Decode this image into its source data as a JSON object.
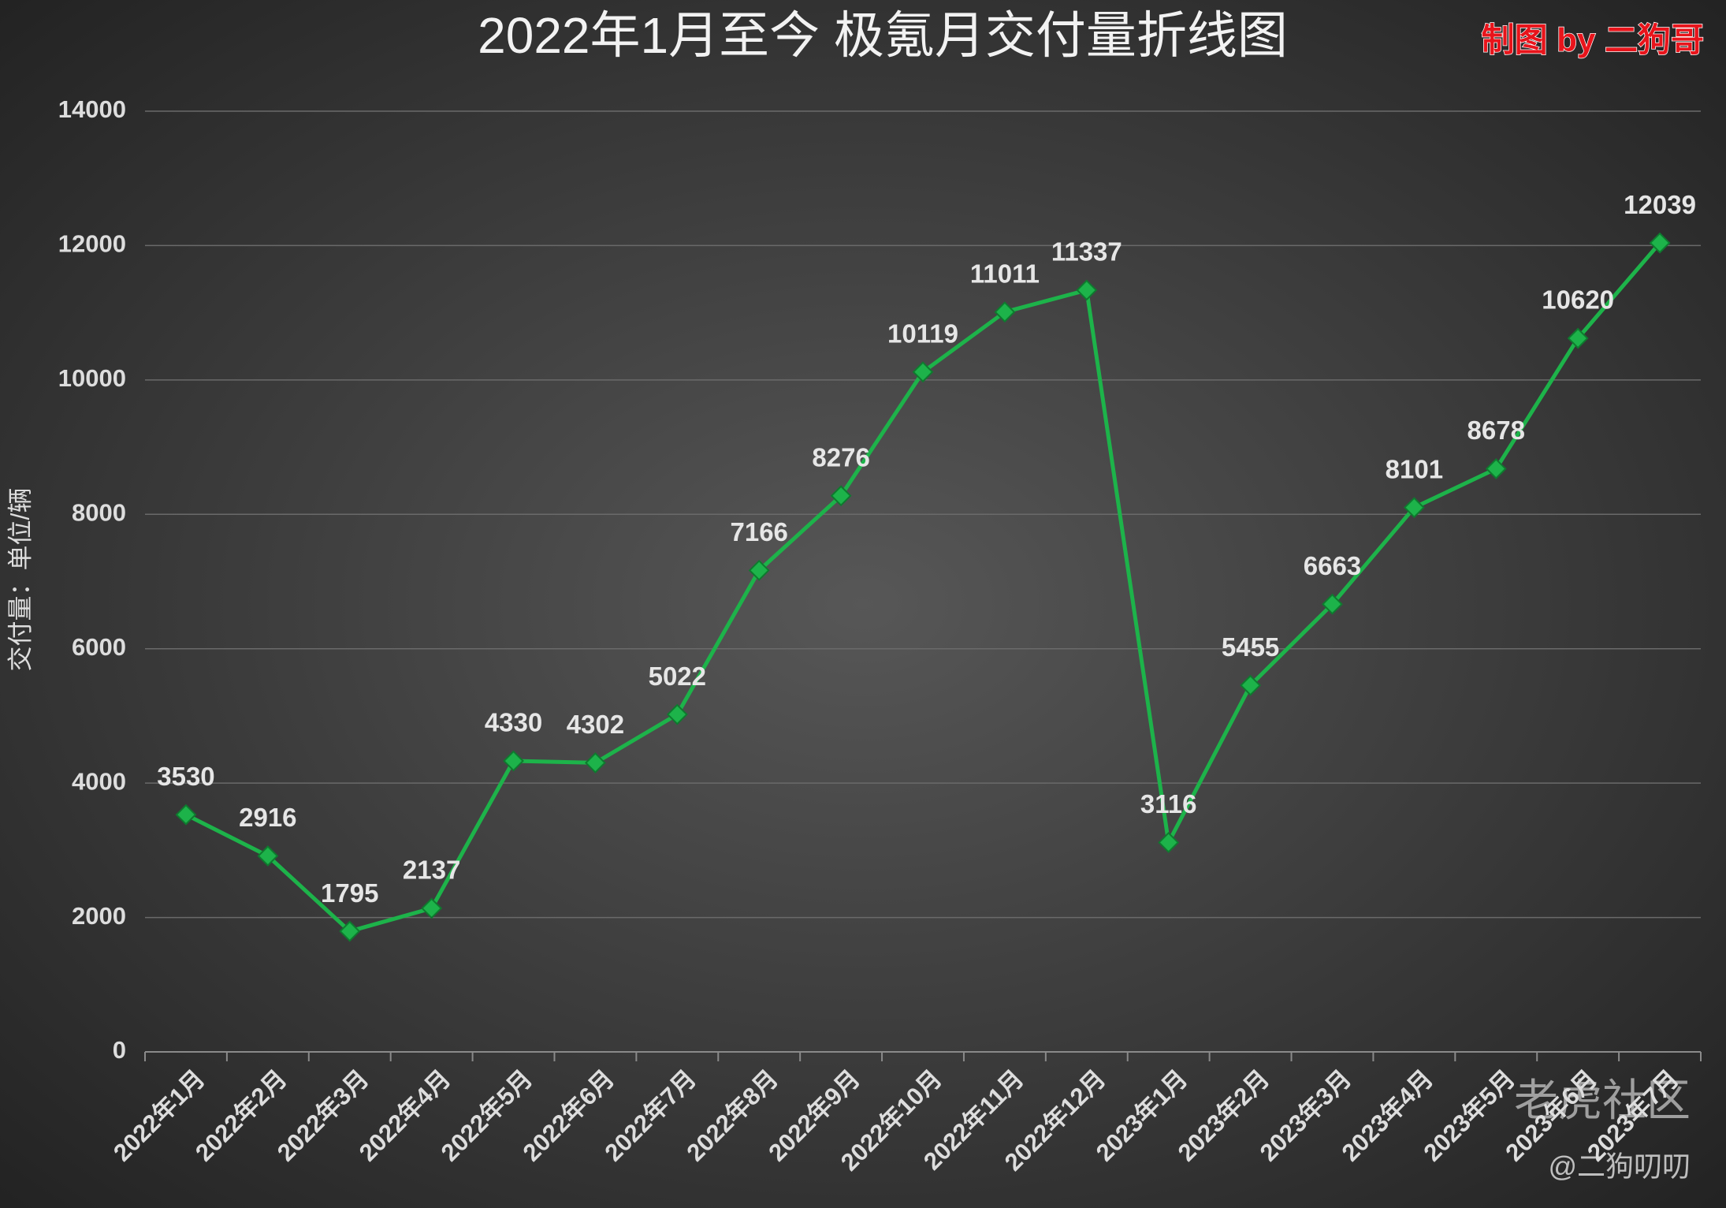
{
  "chart_data": {
    "type": "line",
    "title": "2022年1月至今 极氪月交付量折线图",
    "annotation": "制图 by 二狗哥",
    "ylabel": "交付量：单位/辆",
    "watermark": [
      "老虎社区",
      "@二狗叨叨"
    ],
    "categories": [
      "2022年1月",
      "2022年2月",
      "2022年3月",
      "2022年4月",
      "2022年5月",
      "2022年6月",
      "2022年7月",
      "2022年8月",
      "2022年9月",
      "2022年10月",
      "2022年11月",
      "2022年12月",
      "2023年1月",
      "2023年2月",
      "2023年3月",
      "2023年4月",
      "2023年5月",
      "2023年6月",
      "2023年7月"
    ],
    "series": [
      {
        "name": "交付量",
        "color": "#1db34a",
        "values": [
          3530,
          2916,
          1795,
          2137,
          4330,
          4302,
          5022,
          7166,
          8276,
          10119,
          11011,
          11337,
          3116,
          5455,
          6663,
          8101,
          8678,
          10620,
          12039
        ]
      }
    ],
    "ylim": [
      0,
      14000
    ],
    "yticks": [
      0,
      2000,
      4000,
      6000,
      8000,
      10000,
      12000,
      14000
    ],
    "grid": true
  }
}
